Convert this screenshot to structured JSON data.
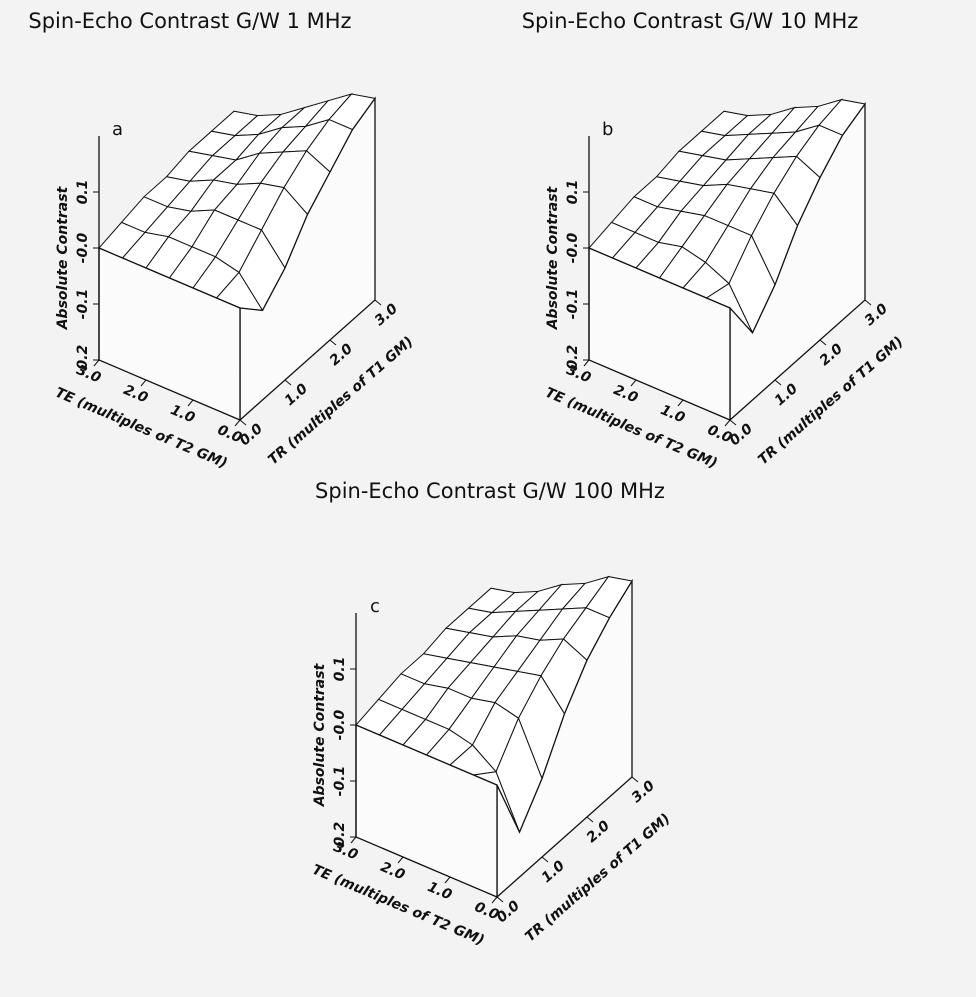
{
  "chart_data": [
    {
      "type": "surface",
      "title": "Spin-Echo Contrast G/W 1 MHz",
      "panel_label": "a",
      "xlabel": "TR (multiples of T1 GM)",
      "ylabel": "TE (multiples of T2 GM)",
      "zlabel": "Absolute Contrast",
      "x": [
        0,
        0.5,
        1,
        1.5,
        2,
        2.5,
        3
      ],
      "y": [
        0,
        0.5,
        1,
        1.5,
        2,
        2.5,
        3
      ],
      "z": [
        [
          0,
          -0.04,
          0.0,
          0.06,
          0.1,
          0.14,
          0.16
        ],
        [
          0,
          0.01,
          0.05,
          0.09,
          0.12,
          0.14,
          0.15
        ],
        [
          0,
          0.02,
          0.05,
          0.08,
          0.1,
          0.11,
          0.12
        ],
        [
          0,
          0.02,
          0.05,
          0.06,
          0.08,
          0.09,
          0.09
        ],
        [
          0,
          0.02,
          0.03,
          0.05,
          0.05,
          0.06,
          0.06
        ],
        [
          0,
          0.01,
          0.02,
          0.03,
          0.04,
          0.04,
          0.04
        ],
        [
          0,
          0.01,
          0.02,
          0.02,
          0.03,
          0.03,
          0.03
        ]
      ],
      "xlim": [
        0,
        3
      ],
      "ylim": [
        0,
        3
      ],
      "zlim": [
        -0.2,
        0.2
      ],
      "xticks": [
        {
          "value": 0,
          "label": "0.0"
        },
        {
          "value": 1,
          "label": "1.0"
        },
        {
          "value": 2,
          "label": "2.0"
        },
        {
          "value": 3,
          "label": "3.0"
        }
      ],
      "yticks": [
        {
          "value": 0,
          "label": "0.0"
        },
        {
          "value": 1,
          "label": "1.0"
        },
        {
          "value": 2,
          "label": "2.0"
        },
        {
          "value": 3,
          "label": "3.0"
        }
      ],
      "zticks": [
        {
          "value": -0.2,
          "label": "-0.2"
        },
        {
          "value": -0.1,
          "label": "-0.1"
        },
        {
          "value": 0,
          "label": "-0.0"
        },
        {
          "value": 0.1,
          "label": "0.1"
        }
      ]
    },
    {
      "type": "surface",
      "title": "Spin-Echo Contrast G/W 10 MHz",
      "panel_label": "b",
      "xlabel": "TR (multiples of T1 GM)",
      "ylabel": "TE (multiples of T2 GM)",
      "zlabel": "Absolute Contrast",
      "x": [
        0,
        0.5,
        1,
        1.5,
        2,
        2.5,
        3
      ],
      "y": [
        0,
        0.5,
        1,
        1.5,
        2,
        2.5,
        3
      ],
      "z": [
        [
          0,
          -0.08,
          -0.03,
          0.04,
          0.09,
          0.13,
          0.15
        ],
        [
          0,
          -0.01,
          0.04,
          0.08,
          0.11,
          0.13,
          0.14
        ],
        [
          0,
          0.01,
          0.04,
          0.07,
          0.09,
          0.1,
          0.11
        ],
        [
          0,
          0.02,
          0.04,
          0.06,
          0.07,
          0.08,
          0.09
        ],
        [
          0,
          0.01,
          0.03,
          0.04,
          0.05,
          0.06,
          0.06
        ],
        [
          0,
          0.01,
          0.02,
          0.03,
          0.04,
          0.04,
          0.04
        ],
        [
          0,
          0.01,
          0.02,
          0.02,
          0.03,
          0.03,
          0.03
        ]
      ],
      "xlim": [
        0,
        3
      ],
      "ylim": [
        0,
        3
      ],
      "zlim": [
        -0.2,
        0.2
      ],
      "xticks": [
        {
          "value": 0,
          "label": "0.0"
        },
        {
          "value": 1,
          "label": "1.0"
        },
        {
          "value": 2,
          "label": "2.0"
        },
        {
          "value": 3,
          "label": "3.0"
        }
      ],
      "yticks": [
        {
          "value": 0,
          "label": "0.0"
        },
        {
          "value": 1,
          "label": "1.0"
        },
        {
          "value": 2,
          "label": "2.0"
        },
        {
          "value": 3,
          "label": "3.0"
        }
      ],
      "zticks": [
        {
          "value": -0.2,
          "label": "-0.2"
        },
        {
          "value": -0.1,
          "label": "-0.1"
        },
        {
          "value": 0,
          "label": "-0.0"
        },
        {
          "value": 0.1,
          "label": "0.1"
        }
      ]
    },
    {
      "type": "surface",
      "title": "Spin-Echo Contrast G/W 100 MHz",
      "panel_label": "c",
      "xlabel": "TR (multiples of T1 GM)",
      "ylabel": "TE (multiples of T2 GM)",
      "zlabel": "Absolute Contrast",
      "x": [
        0,
        0.5,
        1,
        1.5,
        2,
        2.5,
        3
      ],
      "y": [
        0,
        0.5,
        1,
        1.5,
        2,
        2.5,
        3
      ],
      "z": [
        [
          0,
          -0.12,
          -0.06,
          0.02,
          0.08,
          0.12,
          0.15
        ],
        [
          0,
          -0.03,
          0.03,
          0.07,
          0.1,
          0.12,
          0.14
        ],
        [
          0,
          0.0,
          0.04,
          0.06,
          0.08,
          0.1,
          0.11
        ],
        [
          0,
          0.01,
          0.03,
          0.05,
          0.07,
          0.08,
          0.09
        ],
        [
          0,
          0.01,
          0.03,
          0.04,
          0.05,
          0.06,
          0.06
        ],
        [
          0,
          0.01,
          0.02,
          0.03,
          0.04,
          0.04,
          0.04
        ],
        [
          0,
          0.01,
          0.02,
          0.02,
          0.03,
          0.03,
          0.03
        ]
      ],
      "xlim": [
        0,
        3
      ],
      "ylim": [
        0,
        3
      ],
      "zlim": [
        -0.2,
        0.2
      ],
      "xticks": [
        {
          "value": 0,
          "label": "0.0"
        },
        {
          "value": 1,
          "label": "1.0"
        },
        {
          "value": 2,
          "label": "2.0"
        },
        {
          "value": 3,
          "label": "3.0"
        }
      ],
      "yticks": [
        {
          "value": 0,
          "label": "0.0"
        },
        {
          "value": 1,
          "label": "1.0"
        },
        {
          "value": 2,
          "label": "2.0"
        },
        {
          "value": 3,
          "label": "3.0"
        }
      ],
      "zticks": [
        {
          "value": -0.2,
          "label": "-0.2"
        },
        {
          "value": -0.1,
          "label": "-0.1"
        },
        {
          "value": 0,
          "label": "-0.0"
        },
        {
          "value": 0.1,
          "label": "0.1"
        }
      ]
    }
  ]
}
